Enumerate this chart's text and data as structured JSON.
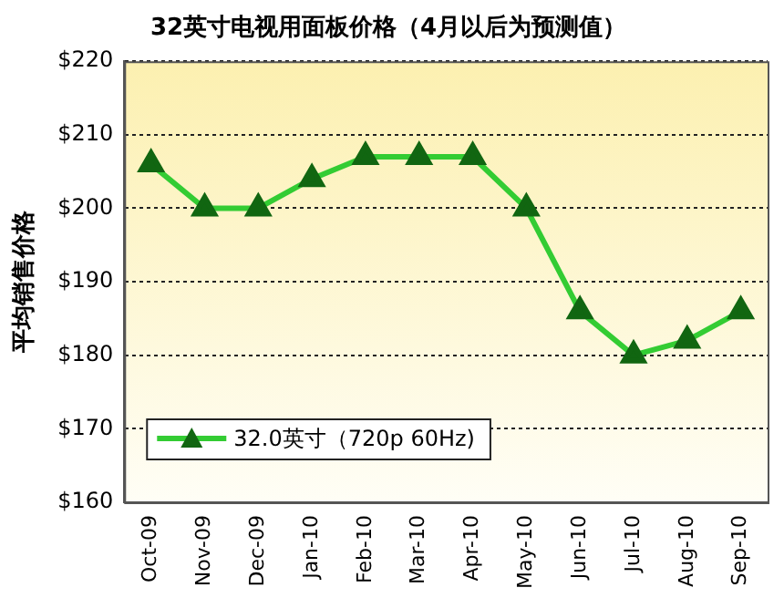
{
  "chart_data": {
    "type": "line",
    "title": "32英寸电视用面板价格（4月以后为预测值）",
    "ylabel": "平均销售价格",
    "categories": [
      "Oct-09",
      "Nov-09",
      "Dec-09",
      "Jan-10",
      "Feb-10",
      "Mar-10",
      "Apr-10",
      "May-10",
      "Jun-10",
      "Jul-10",
      "Aug-10",
      "Sep-10"
    ],
    "series": [
      {
        "name": "32.0英寸（720p 60Hz)",
        "color": "#33cc33",
        "values": [
          206,
          200,
          200,
          204,
          207,
          207,
          207,
          200,
          186,
          180,
          182,
          186
        ]
      }
    ],
    "ylim": [
      160,
      220
    ],
    "yticks": [
      {
        "value": 160,
        "label": "$160"
      },
      {
        "value": 170,
        "label": "$170"
      },
      {
        "value": 180,
        "label": "$180"
      },
      {
        "value": 190,
        "label": "$190"
      },
      {
        "value": 200,
        "label": "$200"
      },
      {
        "value": 210,
        "label": "$210"
      },
      {
        "value": 220,
        "label": "$220"
      }
    ],
    "grid": "y",
    "legend": "bottom left",
    "marker": "triangle",
    "line_style": "solid"
  }
}
